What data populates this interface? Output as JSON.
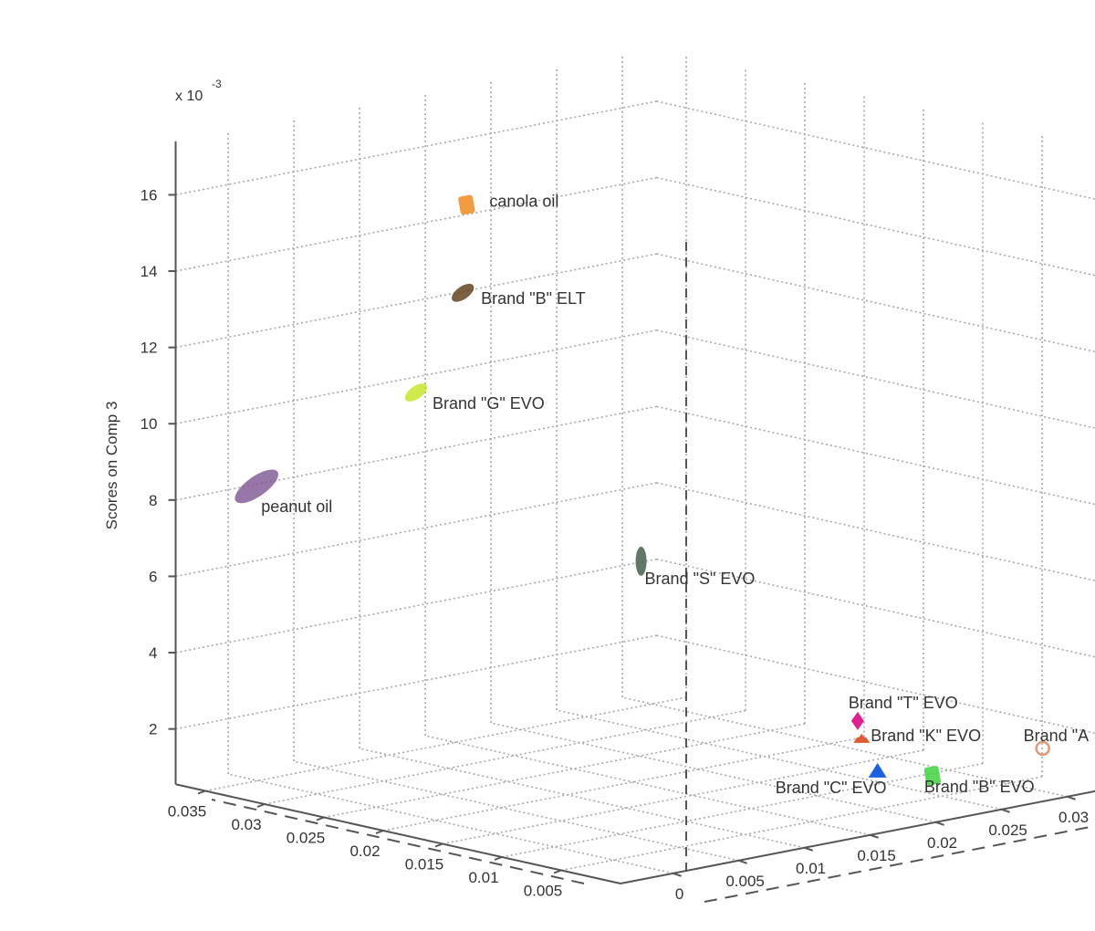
{
  "chart_data": {
    "type": "scatter3d",
    "title": "",
    "xlabel": "",
    "ylabel": "",
    "zlabel": "Scores on Comp 3",
    "z_exponent_label": "x 10",
    "z_exponent": "-3",
    "grid": true,
    "xlim": [
      0,
      0.0375
    ],
    "ylim": [
      -0.004,
      0.0326
    ],
    "zlim": [
      0.55,
      17.4
    ],
    "x_ticks": [
      "0.035",
      "0.03",
      "0.025",
      "0.02",
      "0.015",
      "0.01",
      "0.005"
    ],
    "x_tick_values": [
      0.035,
      0.03,
      0.025,
      0.02,
      0.015,
      0.01,
      0.005
    ],
    "y_ticks": [
      "0",
      "0.005",
      "0.01",
      "0.015",
      "0.02",
      "0.025",
      "0.03"
    ],
    "y_tick_values": [
      0,
      0.005,
      0.01,
      0.015,
      0.02,
      0.025,
      0.03
    ],
    "z_ticks": [
      "2",
      "4",
      "6",
      "8",
      "10",
      "12",
      "14",
      "16"
    ],
    "z_tick_values": [
      2,
      4,
      6,
      8,
      10,
      12,
      14,
      16
    ],
    "points": [
      {
        "label": "canola oil",
        "x": 0.0256,
        "y": 0.0074,
        "z": 15.8,
        "color": "#f08a1e",
        "marker": "square"
      },
      {
        "label": "Brand \"B\" ELT",
        "x": 0.0257,
        "y": 0.0072,
        "z": 13.5,
        "color": "#5a3a12",
        "marker": "ellipse"
      },
      {
        "label": "Brand \"G\" EVO",
        "x": 0.0282,
        "y": 0.0059,
        "z": 10.8,
        "color": "#c4e41e",
        "marker": "ellipse"
      },
      {
        "label": "peanut oil",
        "x": 0.034,
        "y": -0.001,
        "z": 8.4,
        "color": "#7d5592",
        "marker": "ellipse"
      },
      {
        "label": "Brand \"S\" EVO",
        "x": 0.0192,
        "y": 0.0149,
        "z": 6.4,
        "color": "#4f6a56",
        "marker": "ellipse-v"
      },
      {
        "label": "Brand \"T\" EVO",
        "x": 0.0108,
        "y": 0.0238,
        "z": 2.2,
        "color": "#e0208f",
        "marker": "diamond"
      },
      {
        "label": "Brand \"K\" EVO",
        "x": 0.0108,
        "y": 0.0241,
        "z": 1.7,
        "color": "#e05a32",
        "marker": "hat"
      },
      {
        "label": "Brand \"C\" EVO",
        "x": 0.0099,
        "y": 0.0245,
        "z": 0.9,
        "color": "#1a62e0",
        "marker": "triangle"
      },
      {
        "label": "Brand \"B\" EVO",
        "x": 0.0076,
        "y": 0.0266,
        "z": 0.8,
        "color": "#3ed23e",
        "marker": "square"
      },
      {
        "label": "Brand \"A",
        "x": 0.0034,
        "y": 0.0312,
        "z": 1.5,
        "color": "#e09a78",
        "marker": "open-circle"
      }
    ]
  }
}
